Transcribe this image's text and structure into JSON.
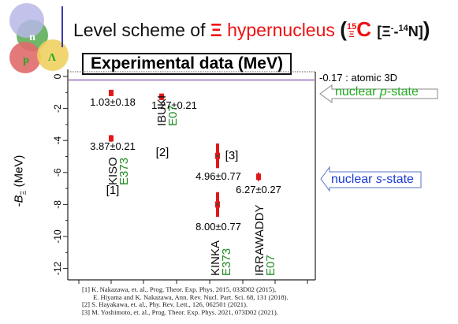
{
  "title": {
    "prefix": "Level scheme of ",
    "xi": "Ξ",
    "suffix": " hypernucleus",
    "paren_open": "(",
    "nucleus_mass": "15",
    "nucleus_xi": "Ξ",
    "nucleus_sym": "C",
    "bracket": "[Ξ",
    "minus": "-",
    "dash": "-",
    "n_mass": "14",
    "n_sym": "N]",
    "paren_close": ")"
  },
  "logo": {
    "labels": [
      "n",
      "p",
      "Λ"
    ]
  },
  "experimental_label": "Experimental data (MeV)",
  "atomic_label": "-0.17 : atomic 3D",
  "callouts": {
    "p_state": {
      "prefix": "nuclear ",
      "ital": "p",
      "suffix": "-state"
    },
    "s_state": {
      "prefix": "nuclear ",
      "ital": "s",
      "suffix": "-state"
    }
  },
  "y_axis_label": {
    "main": "-B",
    "sub": "Ξ",
    "unit": "(MeV)"
  },
  "chart_data": {
    "type": "scatter",
    "ylim": [
      -12.5,
      0.3
    ],
    "y_ticks": [
      0,
      -2,
      -4,
      -6,
      -8,
      -10,
      -12
    ],
    "atomic_line": -0.17,
    "points": [
      {
        "label": "1.03±0.18",
        "y": -1.03,
        "err": 0.18,
        "col": 1
      },
      {
        "label": "3.87±0.21",
        "y": -3.87,
        "err": 0.21,
        "col": 1
      },
      {
        "label": "1.27±0.21",
        "y": -1.27,
        "err": 0.21,
        "col": 2
      },
      {
        "label": "4.96±0.77",
        "y": -4.96,
        "err": 0.77,
        "col": 4
      },
      {
        "label": "8.00±0.77",
        "y": -8.0,
        "err": 0.77,
        "col": 4
      },
      {
        "label": "6.27±0.27",
        "y": -6.27,
        "err": 0.27,
        "col": 5
      }
    ],
    "experiments": [
      {
        "name": "KISO",
        "exp": "E373",
        "ref": "[1]"
      },
      {
        "name": "IBUKI",
        "exp": "E07",
        "ref": "[2]"
      },
      {
        "name": "KINKA",
        "exp": "E373",
        "ref": "[3]"
      },
      {
        "name": "IRRAWADDY",
        "exp": "E07",
        "ref": ""
      }
    ],
    "colors": {
      "point": "#e01818",
      "error_bar": "#e01818",
      "experiment": "#1f8a1f",
      "atomic_line": "#b08fc8",
      "p_state": "#22aa22",
      "s_state": "#1a3bd6"
    }
  },
  "references": [
    "[1] K. Nakazawa, et. al., Prog. Theor. Exp. Phys. 2015, 033D02 (2015),",
    "E. Hiyama and K. Nakazawa, Ann. Rev. Nucl. Part. Sci. 68, 131 (2018).",
    "[2] S. Hayakawa, et. al., Phy. Rev. Lett., 126, 062501 (2021).",
    "[3] M. Yoshimoto, et. al., Prog. Theor. Exp. Phys. 2021, 073D02 (2021)."
  ]
}
